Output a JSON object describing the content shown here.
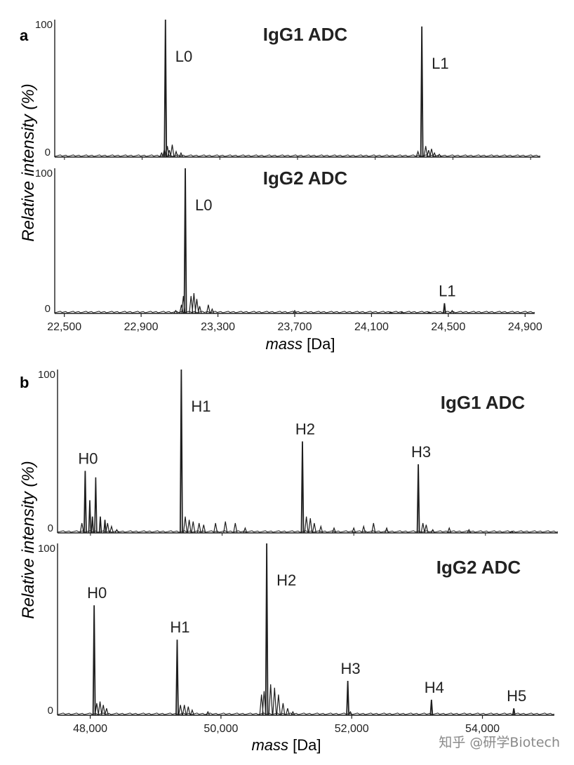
{
  "watermark": "知乎 @研学Biotech",
  "colors": {
    "line": "#1e1e1e",
    "text": "#222222",
    "watermark": "#8a8a8a"
  },
  "panels": [
    {
      "label": "a",
      "xlabel_italic": "mass",
      "xlabel_unit": " [Da]",
      "ylabel": "Relative intensity (%)"
    },
    {
      "label": "b",
      "xlabel_italic": "mass",
      "xlabel_unit": " [Da]",
      "ylabel": "Relative intensity (%)"
    }
  ],
  "chart_data": [
    {
      "type": "line",
      "panel": "a",
      "title": "IgG1 ADC",
      "ylim": [
        0,
        100
      ],
      "xlim": [
        22450,
        24950
      ],
      "ytick_labels": [
        "100",
        "0"
      ],
      "xticks": [],
      "peaks": [
        {
          "label": "L0",
          "mass": 23020,
          "intensity": 100
        },
        {
          "label": "L1",
          "mass": 24340,
          "intensity": 95
        }
      ],
      "minor_peaks": [
        [
          23000,
          3
        ],
        [
          23015,
          6
        ],
        [
          23030,
          8
        ],
        [
          23040,
          5
        ],
        [
          23055,
          9
        ],
        [
          23075,
          4
        ],
        [
          23100,
          3
        ],
        [
          24320,
          4
        ],
        [
          24360,
          8
        ],
        [
          24375,
          5
        ],
        [
          24390,
          6
        ],
        [
          24405,
          3
        ],
        [
          24430,
          2
        ]
      ]
    },
    {
      "type": "line",
      "panel": "a",
      "title": "IgG2 ADC",
      "ylim": [
        0,
        100
      ],
      "xlim": [
        22450,
        24950
      ],
      "ytick_labels": [
        "100",
        "0"
      ],
      "xticks": [
        22500,
        22900,
        23300,
        23700,
        24100,
        24500,
        24900
      ],
      "xtick_labels": [
        "22,500",
        "22,900",
        "23,300",
        "23,700",
        "24,100",
        "24,500",
        "24,900"
      ],
      "peaks": [
        {
          "label": "L0",
          "mass": 23130,
          "intensity": 100
        },
        {
          "label": "L1",
          "mass": 24480,
          "intensity": 7
        }
      ],
      "minor_peaks": [
        [
          23080,
          2
        ],
        [
          23110,
          6
        ],
        [
          23120,
          12
        ],
        [
          23160,
          12
        ],
        [
          23175,
          14
        ],
        [
          23190,
          10
        ],
        [
          23205,
          5
        ],
        [
          23250,
          6
        ],
        [
          23270,
          3
        ],
        [
          23700,
          2
        ],
        [
          24200,
          1
        ],
        [
          24260,
          1
        ],
        [
          24400,
          1
        ],
        [
          24520,
          2
        ]
      ]
    },
    {
      "type": "line",
      "panel": "b",
      "title": "IgG1 ADC",
      "ylim": [
        0,
        100
      ],
      "xlim": [
        47500,
        55100
      ],
      "ytick_labels": [
        "100",
        "0"
      ],
      "xticks": [],
      "peaks": [
        {
          "label": "H0",
          "mass": 47920,
          "intensity": 38
        },
        {
          "label": "H1",
          "mass": 49380,
          "intensity": 100
        },
        {
          "label": "H2",
          "mass": 51220,
          "intensity": 56
        },
        {
          "label": "H3",
          "mass": 52980,
          "intensity": 42
        }
      ],
      "secondary_peaks": [
        [
          48080,
          34
        ],
        [
          47990,
          20
        ],
        [
          48030,
          10
        ],
        [
          48150,
          10
        ],
        [
          48220,
          8
        ]
      ],
      "minor_peaks": [
        [
          47870,
          6
        ],
        [
          48260,
          6
        ],
        [
          48320,
          4
        ],
        [
          48400,
          2
        ],
        [
          49440,
          10
        ],
        [
          49500,
          8
        ],
        [
          49560,
          7
        ],
        [
          49650,
          6
        ],
        [
          49720,
          5
        ],
        [
          49900,
          6
        ],
        [
          50050,
          7
        ],
        [
          50200,
          6
        ],
        [
          50350,
          3
        ],
        [
          51280,
          10
        ],
        [
          51340,
          9
        ],
        [
          51400,
          6
        ],
        [
          51500,
          4
        ],
        [
          51700,
          3
        ],
        [
          52000,
          3
        ],
        [
          52150,
          4
        ],
        [
          52300,
          6
        ],
        [
          52500,
          3
        ],
        [
          53050,
          6
        ],
        [
          53100,
          5
        ],
        [
          53200,
          2
        ],
        [
          53450,
          3
        ],
        [
          53750,
          2
        ],
        [
          54400,
          1
        ]
      ]
    },
    {
      "type": "line",
      "panel": "b",
      "title": "IgG2 ADC",
      "ylim": [
        0,
        100
      ],
      "xlim": [
        47500,
        55100
      ],
      "ytick_labels": [
        "100",
        "0"
      ],
      "xticks": [
        48000,
        50000,
        52000,
        54000
      ],
      "xtick_labels": [
        "48,000",
        "50,000",
        "52,000",
        "54,000"
      ],
      "peaks": [
        {
          "label": "H0",
          "mass": 48060,
          "intensity": 64
        },
        {
          "label": "H1",
          "mass": 49330,
          "intensity": 44
        },
        {
          "label": "H2",
          "mass": 50700,
          "intensity": 100
        },
        {
          "label": "H3",
          "mass": 51940,
          "intensity": 20
        },
        {
          "label": "H4",
          "mass": 53220,
          "intensity": 9
        },
        {
          "label": "H5",
          "mass": 54480,
          "intensity": 4
        }
      ],
      "minor_peaks": [
        [
          48100,
          7
        ],
        [
          48150,
          8
        ],
        [
          48200,
          6
        ],
        [
          48250,
          4
        ],
        [
          49380,
          6
        ],
        [
          49440,
          6
        ],
        [
          49500,
          5
        ],
        [
          49560,
          3
        ],
        [
          49800,
          2
        ],
        [
          50620,
          12
        ],
        [
          50660,
          14
        ],
        [
          50760,
          18
        ],
        [
          50820,
          16
        ],
        [
          50880,
          12
        ],
        [
          50950,
          7
        ],
        [
          51020,
          4
        ],
        [
          51100,
          2
        ],
        [
          51980,
          2
        ]
      ]
    }
  ]
}
